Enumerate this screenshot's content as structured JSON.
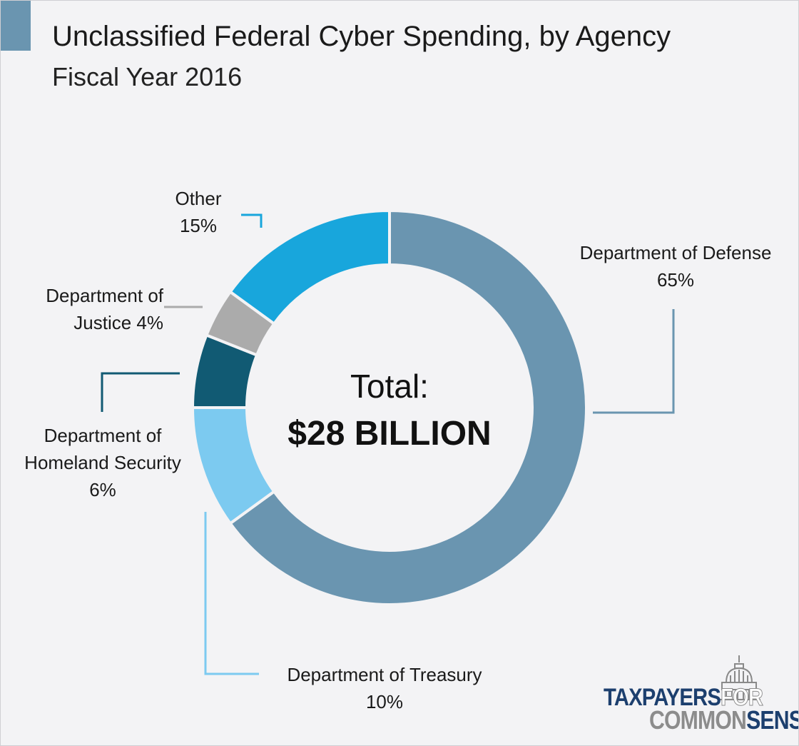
{
  "header": {
    "title": "Unclassified Federal Cyber Spending, by Agency",
    "subtitle": "Fiscal Year 2016"
  },
  "colors": {
    "accent": "#6a95b0",
    "defense": "#6a95b0",
    "treasury": "#7ccaf0",
    "homeland": "#115a73",
    "justice": "#ababab",
    "other": "#18a6dc"
  },
  "chart_data": {
    "type": "pie",
    "style": "donut",
    "title": "Unclassified Federal Cyber Spending, by Agency",
    "subtitle": "Fiscal Year 2016",
    "unit": "%",
    "center_label": {
      "line1": "Total:",
      "line2": "$28 BILLION"
    },
    "slices": [
      {
        "id": "defense",
        "label_lines": [
          "Department of Defense",
          "65%"
        ],
        "value": 65,
        "color": "#6a95b0"
      },
      {
        "id": "treasury",
        "label_lines": [
          "Department of Treasury",
          "10%"
        ],
        "value": 10,
        "color": "#7ccaf0"
      },
      {
        "id": "homeland",
        "label_lines": [
          "Department of",
          "Homeland Security",
          "6%"
        ],
        "value": 6,
        "color": "#115a73"
      },
      {
        "id": "justice",
        "label_lines": [
          "Department of",
          "Justice 4%"
        ],
        "value": 4,
        "color": "#ababab"
      },
      {
        "id": "other",
        "label_lines": [
          "Other",
          "15%"
        ],
        "value": 15,
        "color": "#18a6dc"
      }
    ]
  },
  "logo": {
    "line1_a": "TAXPAYERS",
    "line1_b": "FOR",
    "line2_a": "COMMON",
    "line2_b": "SENSE",
    "icon": "capitol-dome-icon"
  }
}
